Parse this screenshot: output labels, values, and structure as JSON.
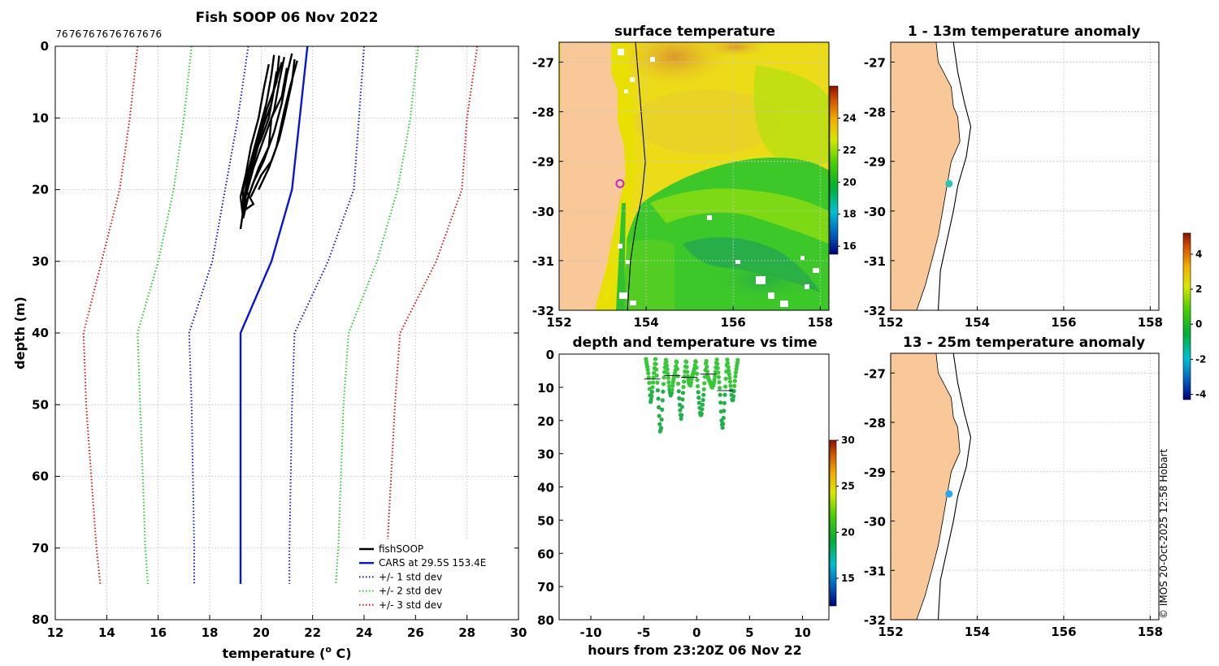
{
  "colors": {
    "cars": "#0a14d8",
    "std1": "#0a14d8",
    "std2": "#22cc22",
    "std3": "#dd1111",
    "soop": "#000000",
    "land": "#f8c898",
    "mark_magenta": "#cc22cc",
    "mark_cyan": "#22c8b0",
    "mark_blue": "#22aaf0"
  },
  "chart_data": [
    {
      "id": "profile",
      "type": "line",
      "title": "Fish SOOP 06 Nov 2022",
      "xlabel": "temperature (° C)",
      "xlabel_pre": "temperature (",
      "xlabel_sup": "o",
      "xlabel_post": " C)",
      "ylabel": "depth (m)",
      "xlim": [
        12,
        30
      ],
      "ylim": [
        80,
        0
      ],
      "xticks": [
        12,
        14,
        16,
        18,
        20,
        22,
        24,
        26,
        28,
        30
      ],
      "yticks": [
        0,
        10,
        20,
        30,
        40,
        50,
        60,
        70,
        80
      ],
      "top_labels": [
        "76",
        "76",
        "76",
        "76",
        "76",
        "76",
        "76",
        "76"
      ],
      "series": [
        {
          "name": "CARS at 29.5S 153.4E",
          "style": "solid",
          "color": "#0a14d8",
          "points": [
            [
              21.8,
              0
            ],
            [
              21.5,
              10
            ],
            [
              21.2,
              20
            ],
            [
              20.4,
              30
            ],
            [
              19.2,
              40
            ],
            [
              19.2,
              50
            ],
            [
              19.2,
              60
            ],
            [
              19.2,
              70
            ],
            [
              19.2,
              75
            ]
          ]
        },
        {
          "name": "+/- 1 std dev",
          "style": "dotted",
          "color": "#0a14d8",
          "points": [
            [
              19.5,
              0
            ],
            [
              19.1,
              10
            ],
            [
              18.6,
              20
            ],
            [
              18.1,
              30
            ],
            [
              17.2,
              40
            ],
            [
              17.3,
              50
            ],
            [
              17.35,
              60
            ],
            [
              17.4,
              70
            ],
            [
              17.4,
              75
            ]
          ]
        },
        {
          "name": "",
          "style": "dotted",
          "color": "#0a14d8",
          "points": [
            [
              24.0,
              0
            ],
            [
              23.8,
              10
            ],
            [
              23.6,
              20
            ],
            [
              22.6,
              30
            ],
            [
              21.3,
              40
            ],
            [
              21.2,
              50
            ],
            [
              21.15,
              60
            ],
            [
              21.1,
              70
            ],
            [
              21.1,
              75
            ]
          ]
        },
        {
          "name": "+/- 2 std dev",
          "style": "dotted",
          "color": "#22cc22",
          "points": [
            [
              17.3,
              0
            ],
            [
              17.0,
              10
            ],
            [
              16.6,
              20
            ],
            [
              16.0,
              30
            ],
            [
              15.2,
              40
            ],
            [
              15.3,
              50
            ],
            [
              15.4,
              60
            ],
            [
              15.5,
              70
            ],
            [
              15.6,
              75
            ]
          ]
        },
        {
          "name": "",
          "style": "dotted",
          "color": "#22cc22",
          "points": [
            [
              26.1,
              0
            ],
            [
              25.8,
              10
            ],
            [
              25.3,
              20
            ],
            [
              24.5,
              30
            ],
            [
              23.4,
              40
            ],
            [
              23.2,
              50
            ],
            [
              23.1,
              60
            ],
            [
              23.0,
              70
            ],
            [
              22.9,
              75
            ]
          ]
        },
        {
          "name": "+/- 3 std dev",
          "style": "dotted",
          "color": "#dd1111",
          "points": [
            [
              15.2,
              0
            ],
            [
              14.9,
              10
            ],
            [
              14.5,
              20
            ],
            [
              13.8,
              30
            ],
            [
              13.1,
              40
            ],
            [
              13.2,
              50
            ],
            [
              13.4,
              60
            ],
            [
              13.6,
              70
            ],
            [
              13.75,
              75
            ]
          ]
        },
        {
          "name": "",
          "style": "dotted",
          "color": "#dd1111",
          "points": [
            [
              28.4,
              0
            ],
            [
              28.0,
              10
            ],
            [
              27.8,
              20
            ],
            [
              26.8,
              30
            ],
            [
              25.4,
              40
            ],
            [
              25.2,
              50
            ],
            [
              25.05,
              60
            ],
            [
              24.9,
              70
            ],
            [
              24.8,
              75
            ]
          ]
        }
      ],
      "soop_casts": [
        [
          [
            20.5,
            1.2
          ],
          [
            20.4,
            4
          ],
          [
            20.2,
            8
          ],
          [
            19.9,
            12
          ],
          [
            19.6,
            16
          ],
          [
            19.3,
            20
          ],
          [
            19.3,
            23
          ],
          [
            19.2,
            25.5
          ]
        ],
        [
          [
            20.9,
            1.5
          ],
          [
            20.7,
            5
          ],
          [
            20.5,
            9
          ],
          [
            20.1,
            13
          ],
          [
            19.7,
            17
          ],
          [
            19.4,
            21
          ],
          [
            19.3,
            23.5
          ]
        ],
        [
          [
            21.2,
            1.0
          ],
          [
            21.0,
            4
          ],
          [
            20.8,
            8
          ],
          [
            20.5,
            12
          ],
          [
            20.1,
            16
          ],
          [
            19.7,
            19
          ],
          [
            19.4,
            22
          ]
        ],
        [
          [
            20.7,
            1.3
          ],
          [
            20.6,
            5
          ],
          [
            20.2,
            9
          ],
          [
            19.9,
            13
          ],
          [
            19.5,
            18
          ],
          [
            19.3,
            22
          ]
        ],
        [
          [
            21.4,
            2.0
          ],
          [
            21.1,
            6
          ],
          [
            20.9,
            9
          ],
          [
            20.6,
            14
          ],
          [
            20.3,
            17
          ],
          [
            19.9,
            20
          ]
        ],
        [
          [
            20.3,
            2.5
          ],
          [
            20.1,
            6
          ],
          [
            19.9,
            10
          ],
          [
            19.6,
            14
          ],
          [
            19.4,
            18
          ],
          [
            19.2,
            21
          ],
          [
            19.3,
            24
          ]
        ],
        [
          [
            21.0,
            3.0
          ],
          [
            20.8,
            7
          ],
          [
            20.4,
            10
          ],
          [
            20.3,
            14
          ],
          [
            19.9,
            17
          ],
          [
            19.5,
            21
          ],
          [
            19.3,
            24
          ]
        ],
        [
          [
            20.8,
            2.2
          ],
          [
            20.5,
            6
          ],
          [
            20.3,
            10
          ],
          [
            20.0,
            13
          ],
          [
            19.6,
            16
          ],
          [
            19.4,
            20
          ],
          [
            19.7,
            22
          ],
          [
            19.3,
            23
          ]
        ],
        [
          [
            21.3,
            1.8
          ],
          [
            21.2,
            5
          ],
          [
            20.9,
            10
          ],
          [
            20.7,
            13
          ],
          [
            20.4,
            16
          ],
          [
            20.0,
            18
          ],
          [
            19.6,
            21
          ]
        ],
        [
          [
            20.6,
            3.5
          ],
          [
            20.4,
            8
          ],
          [
            20.1,
            11
          ],
          [
            19.8,
            15
          ],
          [
            19.5,
            19
          ],
          [
            19.3,
            22
          ]
        ]
      ],
      "legend": {
        "placement": "bottom-right",
        "entries": [
          "fishSOOP",
          "CARS at 29.5S 153.4E",
          "+/- 1 std dev",
          "+/- 2 std dev",
          "+/- 3 std dev"
        ]
      }
    },
    {
      "id": "sst_map",
      "type": "heatmap",
      "title": "surface temperature",
      "xlim": [
        152,
        158.2
      ],
      "ylim": [
        -32,
        -26.6
      ],
      "xticks": [
        152,
        154,
        156,
        158
      ],
      "yticks": [
        -27,
        -28,
        -29,
        -30,
        -31,
        -32
      ],
      "colorbar": {
        "min": 15.5,
        "max": 26,
        "ticks": [
          16,
          18,
          20,
          22,
          24
        ]
      },
      "marker": {
        "lon": 153.4,
        "lat": -29.45
      }
    },
    {
      "id": "depth_time",
      "type": "scatter",
      "title": "depth and temperature vs time",
      "xlabel": "hours from 23:20Z 06 Nov 22",
      "xlim": [
        -13,
        12.5
      ],
      "ylim": [
        80,
        0
      ],
      "xticks": [
        -10,
        -5,
        0,
        5,
        10
      ],
      "yticks": [
        0,
        10,
        20,
        30,
        40,
        50,
        60,
        70,
        80
      ],
      "colorbar": {
        "min": 12,
        "max": 30,
        "ticks": [
          15,
          20,
          25,
          30
        ]
      },
      "time_range": [
        -4.8,
        3.9
      ],
      "dive_peaks": [
        -4.8,
        -3.9,
        -2.9,
        -1.9,
        -1.0,
        -0.1,
        0.9,
        1.9,
        2.9,
        3.9
      ]
    },
    {
      "id": "anom_1_13",
      "type": "map",
      "title": "1 - 13m temperature anomaly",
      "xlim": [
        152,
        158.2
      ],
      "ylim": [
        -32,
        -26.6
      ],
      "xticks": [
        152,
        154,
        156,
        158
      ],
      "yticks": [
        -27,
        -28,
        -29,
        -30,
        -31,
        -32
      ],
      "marker": {
        "lon": 153.35,
        "lat": -29.45,
        "anomaly": -1.2
      }
    },
    {
      "id": "anom_13_25",
      "type": "map",
      "title": "13 - 25m temperature anomaly",
      "xlim": [
        152,
        158.2
      ],
      "ylim": [
        -32,
        -26.6
      ],
      "xticks": [
        152,
        154,
        156,
        158
      ],
      "yticks": [
        -27,
        -28,
        -29,
        -30,
        -31,
        -32
      ],
      "marker": {
        "lon": 153.35,
        "lat": -29.45,
        "anomaly": -2.0
      }
    }
  ],
  "anomaly_colorbar": {
    "min": -4.3,
    "max": 5.2,
    "ticks": [
      -4,
      -2,
      0,
      2,
      4
    ]
  },
  "credit": "© IMOS 20-Oct-2025 12:58 Hobart"
}
